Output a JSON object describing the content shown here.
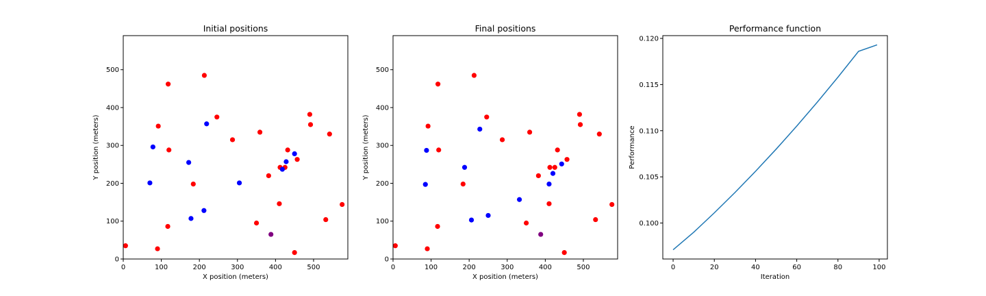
{
  "chart_data": [
    {
      "type": "scatter",
      "title": "Initial positions",
      "xlabel": "X position (meters)",
      "ylabel": "Y position (meters)",
      "xlim": [
        0,
        590
      ],
      "ylim": [
        0,
        590
      ],
      "xticks": [
        0,
        100,
        200,
        300,
        400,
        500
      ],
      "yticks": [
        0,
        100,
        200,
        300,
        400,
        500
      ],
      "grid": false,
      "series": [
        {
          "color": "#ff0000",
          "points": [
            [
              6,
              35
            ],
            [
              90,
              27
            ],
            [
              117,
              86
            ],
            [
              92,
              351
            ],
            [
              118,
              462
            ],
            [
              120,
              288
            ],
            [
              184,
              198
            ],
            [
              213,
              485
            ],
            [
              246,
              375
            ],
            [
              287,
              315
            ],
            [
              350,
              95
            ],
            [
              359,
              335
            ],
            [
              382,
              220
            ],
            [
              410,
              146
            ],
            [
              412,
              242
            ],
            [
              425,
              242
            ],
            [
              432,
              288
            ],
            [
              457,
              263
            ],
            [
              450,
              17
            ],
            [
              490,
              382
            ],
            [
              492,
              355
            ],
            [
              542,
              330
            ],
            [
              532,
              104
            ],
            [
              575,
              144
            ]
          ]
        },
        {
          "color": "#0000ff",
          "points": [
            [
              70,
              201
            ],
            [
              78,
              296
            ],
            [
              172,
              255
            ],
            [
              178,
              107
            ],
            [
              212,
              128
            ],
            [
              219,
              357
            ],
            [
              305,
              201
            ],
            [
              418,
              237
            ],
            [
              428,
              257
            ],
            [
              450,
              278
            ]
          ]
        },
        {
          "color": "#800080",
          "points": [
            [
              388,
              65
            ]
          ]
        }
      ]
    },
    {
      "type": "scatter",
      "title": "Final positions",
      "xlabel": "X position (meters)",
      "ylabel": "Y position (meters)",
      "xlim": [
        0,
        590
      ],
      "ylim": [
        0,
        590
      ],
      "xticks": [
        0,
        100,
        200,
        300,
        400,
        500
      ],
      "yticks": [
        0,
        100,
        200,
        300,
        400,
        500
      ],
      "grid": false,
      "series": [
        {
          "color": "#ff0000",
          "points": [
            [
              6,
              35
            ],
            [
              90,
              27
            ],
            [
              117,
              86
            ],
            [
              92,
              351
            ],
            [
              118,
              462
            ],
            [
              120,
              288
            ],
            [
              184,
              198
            ],
            [
              213,
              485
            ],
            [
              246,
              375
            ],
            [
              287,
              315
            ],
            [
              350,
              95
            ],
            [
              359,
              335
            ],
            [
              382,
              220
            ],
            [
              410,
              146
            ],
            [
              412,
              242
            ],
            [
              425,
              242
            ],
            [
              432,
              288
            ],
            [
              457,
              263
            ],
            [
              450,
              17
            ],
            [
              490,
              382
            ],
            [
              492,
              355
            ],
            [
              542,
              330
            ],
            [
              532,
              104
            ],
            [
              575,
              144
            ]
          ]
        },
        {
          "color": "#0000ff",
          "points": [
            [
              85,
              197
            ],
            [
              88,
              287
            ],
            [
              188,
              242
            ],
            [
              206,
              103
            ],
            [
              250,
              115
            ],
            [
              228,
              343
            ],
            [
              332,
              157
            ],
            [
              410,
              198
            ],
            [
              420,
              226
            ],
            [
              443,
              251
            ]
          ]
        },
        {
          "color": "#800080",
          "points": [
            [
              388,
              65
            ]
          ]
        }
      ]
    },
    {
      "type": "line",
      "title": "Performance function",
      "xlabel": "Iteration",
      "ylabel": "Performance",
      "xlim": [
        -5,
        104
      ],
      "ylim": [
        0.0961,
        0.1203
      ],
      "xticks": [
        0,
        20,
        40,
        60,
        80,
        100
      ],
      "yticks": [
        "0.100",
        "0.105",
        "0.110",
        "0.115",
        "0.120"
      ],
      "grid": false,
      "series": [
        {
          "color": "#1f77b4",
          "x": [
            0,
            10,
            20,
            30,
            40,
            50,
            60,
            70,
            80,
            90,
            99
          ],
          "y": [
            0.0971,
            0.099,
            0.1011,
            0.1033,
            0.1056,
            0.108,
            0.1105,
            0.1131,
            0.1158,
            0.1186,
            0.1193
          ]
        }
      ]
    }
  ]
}
